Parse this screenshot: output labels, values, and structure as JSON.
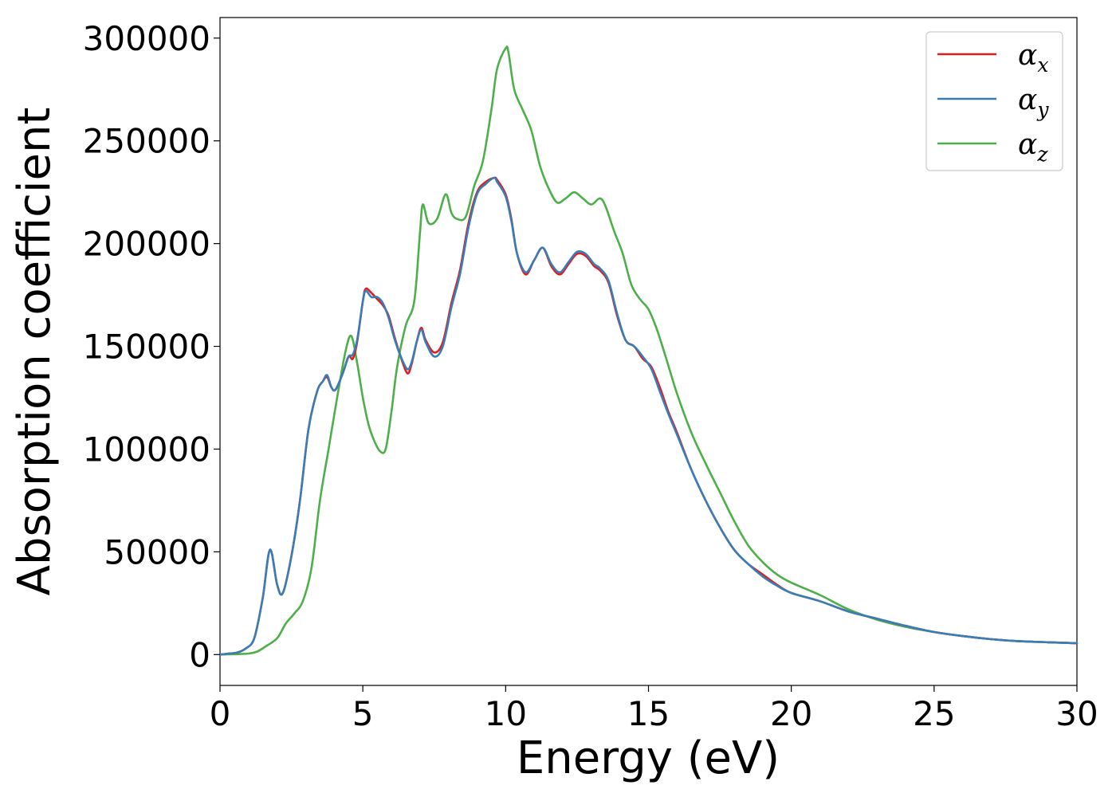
{
  "chart_data": {
    "type": "line",
    "title": "",
    "xlabel": "Energy (eV)",
    "ylabel": "Absorption coefficient",
    "xlim": [
      0,
      30
    ],
    "ylim": [
      -15000,
      310000
    ],
    "xticks": [
      0,
      5,
      10,
      15,
      20,
      25,
      30
    ],
    "yticks": [
      0,
      50000,
      100000,
      150000,
      200000,
      250000,
      300000
    ],
    "grid": false,
    "legend_position": "top-right",
    "series": [
      {
        "name": "αx",
        "legend_main": "α",
        "legend_sub": "x",
        "color": "#e41a1c",
        "x": [
          0,
          0.3,
          0.6,
          0.9,
          1.2,
          1.5,
          1.75,
          2.0,
          2.2,
          2.5,
          2.8,
          3.1,
          3.4,
          3.6,
          3.75,
          3.9,
          4.05,
          4.3,
          4.5,
          4.65,
          4.8,
          5.0,
          5.1,
          5.3,
          5.5,
          5.7,
          5.9,
          6.1,
          6.3,
          6.55,
          6.7,
          6.9,
          7.05,
          7.2,
          7.5,
          7.8,
          8.1,
          8.4,
          8.7,
          9.0,
          9.3,
          9.6,
          9.7,
          10.0,
          10.2,
          10.4,
          10.7,
          11.0,
          11.3,
          11.6,
          11.9,
          12.2,
          12.5,
          12.8,
          13.1,
          13.3,
          13.6,
          13.9,
          14.2,
          14.5,
          14.8,
          15.1,
          15.4,
          15.7,
          16.0,
          16.5,
          17.0,
          17.5,
          18.0,
          18.5,
          19.0,
          19.5,
          20.0,
          21.0,
          22.0,
          23.0,
          24.0,
          25.0,
          26.0,
          27.0,
          28.0,
          29.0,
          30.0
        ],
        "values": [
          0,
          500,
          1000,
          3000,
          8000,
          28000,
          51000,
          34000,
          30000,
          48000,
          75000,
          110000,
          128000,
          133000,
          135000,
          130000,
          129000,
          137000,
          145000,
          144000,
          152000,
          172000,
          178000,
          176000,
          173000,
          170000,
          165000,
          155000,
          146000,
          137000,
          141000,
          153000,
          159000,
          153000,
          147000,
          152000,
          171000,
          187000,
          210000,
          225000,
          230000,
          232000,
          231000,
          224000,
          212000,
          195000,
          185000,
          192000,
          198000,
          189000,
          185000,
          190000,
          195000,
          194000,
          189000,
          187000,
          181000,
          165000,
          153000,
          150000,
          144000,
          140000,
          130000,
          118000,
          108000,
          90000,
          75000,
          62000,
          51000,
          44000,
          39000,
          34000,
          30000,
          26000,
          21000,
          17500,
          14000,
          11000,
          9000,
          7500,
          6500,
          6000,
          5500
        ]
      },
      {
        "name": "αy",
        "legend_main": "α",
        "legend_sub": "y",
        "color": "#377eb8",
        "x": [
          0,
          0.3,
          0.6,
          0.9,
          1.2,
          1.5,
          1.75,
          2.0,
          2.2,
          2.5,
          2.8,
          3.1,
          3.4,
          3.6,
          3.75,
          3.9,
          4.05,
          4.3,
          4.5,
          4.65,
          4.8,
          5.0,
          5.1,
          5.3,
          5.5,
          5.7,
          5.9,
          6.1,
          6.3,
          6.55,
          6.7,
          6.9,
          7.05,
          7.2,
          7.5,
          7.8,
          8.1,
          8.4,
          8.7,
          9.0,
          9.3,
          9.6,
          9.7,
          10.0,
          10.2,
          10.4,
          10.7,
          11.0,
          11.3,
          11.6,
          11.9,
          12.2,
          12.5,
          12.8,
          13.1,
          13.3,
          13.6,
          13.9,
          14.2,
          14.5,
          14.8,
          15.1,
          15.4,
          15.7,
          16.0,
          16.5,
          17.0,
          17.5,
          18.0,
          18.5,
          19.0,
          19.5,
          20.0,
          21.0,
          22.0,
          23.0,
          24.0,
          25.0,
          26.0,
          27.0,
          28.0,
          29.0,
          30.0
        ],
        "values": [
          0,
          500,
          1000,
          3000,
          8000,
          28000,
          51000,
          34000,
          30000,
          48000,
          75000,
          110000,
          128000,
          133000,
          136000,
          130000,
          129000,
          137000,
          145000,
          146000,
          153000,
          172000,
          177000,
          174000,
          174000,
          171000,
          164000,
          154000,
          146000,
          139000,
          142000,
          153000,
          158000,
          152000,
          145000,
          150000,
          169000,
          185000,
          208000,
          224000,
          229000,
          232000,
          230000,
          223000,
          211000,
          195000,
          186000,
          192000,
          198000,
          190000,
          186000,
          191000,
          196000,
          195000,
          190000,
          188000,
          182000,
          166000,
          153000,
          150000,
          145000,
          139000,
          128000,
          117000,
          107000,
          90000,
          75000,
          62000,
          51000,
          44000,
          38000,
          33500,
          30000,
          26000,
          21000,
          17500,
          14000,
          11000,
          9000,
          7500,
          6500,
          6000,
          5500
        ]
      },
      {
        "name": "αz",
        "legend_main": "α",
        "legend_sub": "z",
        "color": "#4daf4a",
        "x": [
          0,
          0.5,
          1.0,
          1.3,
          1.6,
          2.0,
          2.3,
          2.6,
          2.9,
          3.2,
          3.5,
          3.8,
          4.1,
          4.4,
          4.6,
          4.8,
          5.0,
          5.2,
          5.4,
          5.6,
          5.8,
          6.0,
          6.2,
          6.5,
          6.8,
          7.0,
          7.1,
          7.3,
          7.6,
          7.9,
          8.1,
          8.3,
          8.6,
          8.9,
          9.2,
          9.5,
          9.7,
          10.0,
          10.1,
          10.3,
          10.6,
          10.9,
          11.2,
          11.5,
          11.8,
          12.1,
          12.4,
          12.7,
          13.0,
          13.3,
          13.5,
          13.8,
          14.1,
          14.4,
          14.7,
          15.0,
          15.3,
          15.6,
          16.0,
          16.5,
          17.0,
          17.5,
          18.0,
          18.5,
          19.0,
          19.5,
          20.0,
          21.0,
          22.0,
          23.0,
          24.0,
          25.0,
          26.0,
          27.0,
          28.0,
          29.0,
          30.0
        ],
        "values": [
          0,
          200,
          500,
          1500,
          4000,
          8000,
          15000,
          20000,
          26000,
          42000,
          75000,
          100000,
          125000,
          148000,
          155000,
          142000,
          125000,
          112000,
          104000,
          99000,
          100000,
          118000,
          140000,
          160000,
          172000,
          205000,
          219000,
          210000,
          212000,
          224000,
          215000,
          212000,
          213000,
          228000,
          240000,
          265000,
          285000,
          295000,
          293000,
          275000,
          265000,
          255000,
          238000,
          227000,
          220000,
          222000,
          225000,
          222000,
          219000,
          222000,
          218000,
          206000,
          195000,
          180000,
          173000,
          168000,
          158000,
          145000,
          127000,
          108000,
          93000,
          79000,
          65000,
          53000,
          45000,
          39000,
          35000,
          29000,
          22000,
          17000,
          13500,
          11000,
          9000,
          7500,
          6500,
          6000,
          5500
        ]
      }
    ]
  }
}
